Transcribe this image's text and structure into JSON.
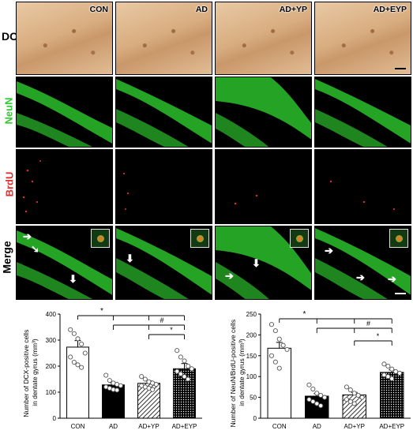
{
  "row_labels": {
    "dcx": "DCX",
    "neun": "NeuN",
    "brdu": "BrdU",
    "merge": "Merge"
  },
  "row_label_colors": {
    "dcx": "#000000",
    "neun": "#2ecc2e",
    "brdu": "#e03030",
    "merge": "#000000"
  },
  "groups": [
    "CON",
    "AD",
    "AD+YP",
    "AD+EYP"
  ],
  "colors": {
    "neun_green": "#2bbf2b",
    "brdu_red": "#d83030",
    "dcx_brown": "#7a3c14"
  },
  "chart_data": [
    {
      "type": "bar",
      "ylabel": "Number of DCX-positive cells in dentate gyrus (mm³)",
      "ylabel_line1": "Number of DCX-positive cells",
      "ylabel_line2": "in dentate gyrus (mm³)",
      "ylim": [
        0,
        400
      ],
      "yticks": [
        "0",
        "100",
        "200",
        "300",
        "400"
      ],
      "categories": [
        "CON",
        "AD",
        "AD+YP",
        "AD+EYP"
      ],
      "values": [
        273,
        128,
        134,
        190
      ],
      "errors": [
        25,
        8,
        9,
        20
      ],
      "bar_styles": [
        "white",
        "black",
        "hatched",
        "dotted"
      ],
      "points": [
        [
          340,
          325,
          305,
          285,
          250,
          235,
          215,
          205,
          195
        ],
        [
          165,
          145,
          135,
          130,
          125,
          120,
          115,
          110,
          108
        ],
        [
          160,
          150,
          140,
          135,
          130,
          125,
          120,
          115,
          110
        ],
        [
          260,
          235,
          220,
          200,
          190,
          180,
          170,
          160,
          150
        ]
      ],
      "significance": [
        "*",
        "#",
        "*"
      ]
    },
    {
      "type": "bar",
      "ylabel": "Number of NeuN/BrdU-positive cells in dentate gyrus (mm³)",
      "ylabel_line1": "Number of NeuN/BrdU-positive cells",
      "ylabel_line2": "in dentate gyrus (mm³)",
      "ylim": [
        0,
        250
      ],
      "yticks": [
        "0",
        "50",
        "100",
        "150",
        "200",
        "250"
      ],
      "categories": [
        "CON",
        "AD",
        "AD+YP",
        "AD+EYP"
      ],
      "values": [
        168,
        53,
        56,
        110
      ],
      "errors": [
        14,
        6,
        6,
        6
      ],
      "bar_styles": [
        "white",
        "black",
        "hatched",
        "dotted"
      ],
      "points": [
        [
          225,
          210,
          190,
          175,
          165,
          150,
          135,
          120
        ],
        [
          80,
          70,
          60,
          55,
          50,
          45,
          40,
          35,
          30
        ],
        [
          75,
          68,
          60,
          55,
          50,
          45,
          40,
          35
        ],
        [
          130,
          125,
          118,
          112,
          108,
          104,
          100,
          95
        ]
      ],
      "significance": [
        "*",
        "#",
        "*"
      ]
    }
  ]
}
